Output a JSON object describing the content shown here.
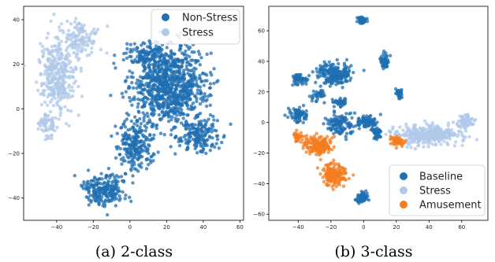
{
  "chart_data": [
    {
      "type": "scatter",
      "caption": "(a) 2-class",
      "xlim": [
        -58,
        62
      ],
      "ylim": [
        -50,
        46
      ],
      "xticks": [
        -40,
        -20,
        0,
        20,
        40,
        60
      ],
      "yticks": [
        -40,
        -20,
        0,
        20,
        40
      ],
      "xtick_labels": [
        "−40",
        "−20",
        "0",
        "20",
        "40",
        "60"
      ],
      "ytick_labels": [
        "−40",
        "−20",
        "0",
        "20",
        "40"
      ],
      "grid": false,
      "legend": "top-right",
      "series": [
        {
          "name": "Non-Stress",
          "color": "#1f6fb2",
          "clusters": [
            {
              "cx": 22,
              "cy": 10,
              "sx": 17,
              "sy": 15,
              "n": 900
            },
            {
              "cx": 3,
              "cy": -17,
              "sx": 8,
              "sy": 9,
              "n": 230
            },
            {
              "cx": -14,
              "cy": -36,
              "sx": 10,
              "sy": 6,
              "n": 220
            },
            {
              "cx": 10,
              "cy": 24,
              "sx": 10,
              "sy": 5,
              "n": 130
            },
            {
              "cx": 38,
              "cy": -12,
              "sx": 9,
              "sy": 6,
              "n": 160
            }
          ]
        },
        {
          "name": "Stress",
          "color": "#b0c8ea",
          "clusters": [
            {
              "cx": -40,
              "cy": 15,
              "sx": 8,
              "sy": 14,
              "n": 330
            },
            {
              "cx": -27,
              "cy": 32,
              "sx": 8,
              "sy": 6,
              "n": 120
            },
            {
              "cx": -45,
              "cy": -8,
              "sx": 4,
              "sy": 5,
              "n": 60
            }
          ]
        }
      ]
    },
    {
      "type": "scatter",
      "caption": "(b) 3-class",
      "xlim": [
        -58,
        76
      ],
      "ylim": [
        -64,
        76
      ],
      "xticks": [
        -40,
        -20,
        0,
        20,
        40,
        60
      ],
      "yticks": [
        -60,
        -40,
        -20,
        0,
        20,
        40,
        60
      ],
      "xtick_labels": [
        "−40",
        "−20",
        "0",
        "20",
        "40",
        "60"
      ],
      "ytick_labels": [
        "−60",
        "−40",
        "−20",
        "0",
        "20",
        "40",
        "60"
      ],
      "grid": false,
      "legend": "bottom-right",
      "series": [
        {
          "name": "Baseline",
          "color": "#1f6fb2",
          "clusters": [
            {
              "cx": -1,
              "cy": 67,
              "sx": 2,
              "sy": 2,
              "n": 70
            },
            {
              "cx": -18,
              "cy": 32,
              "sx": 9,
              "sy": 6,
              "n": 200
            },
            {
              "cx": 13,
              "cy": 40,
              "sx": 2,
              "sy": 4,
              "n": 60
            },
            {
              "cx": -39,
              "cy": 28,
              "sx": 4,
              "sy": 3,
              "n": 60
            },
            {
              "cx": -28,
              "cy": 18,
              "sx": 3,
              "sy": 3,
              "n": 40
            },
            {
              "cx": 22,
              "cy": 19,
              "sx": 2,
              "sy": 2,
              "n": 40
            },
            {
              "cx": -40,
              "cy": 5,
              "sx": 4,
              "sy": 4,
              "n": 80
            },
            {
              "cx": -14,
              "cy": 13,
              "sx": 3,
              "sy": 2,
              "n": 60
            },
            {
              "cx": -15,
              "cy": -1,
              "sx": 7,
              "sy": 6,
              "n": 120
            },
            {
              "cx": 2,
              "cy": 0,
              "sx": 5,
              "sy": 4,
              "n": 90
            },
            {
              "cx": 8,
              "cy": -7,
              "sx": 3,
              "sy": 3,
              "n": 40
            },
            {
              "cx": -1,
              "cy": -49,
              "sx": 3,
              "sy": 3,
              "n": 70
            }
          ]
        },
        {
          "name": "Stress",
          "color": "#b0c8ea",
          "clusters": [
            {
              "cx": 40,
              "cy": -8,
              "sx": 17,
              "sy": 5,
              "n": 330
            },
            {
              "cx": 63,
              "cy": 0,
              "sx": 4,
              "sy": 4,
              "n": 70
            }
          ]
        },
        {
          "name": "Amusement",
          "color": "#f47c20",
          "clusters": [
            {
              "cx": -28,
              "cy": -15,
              "sx": 7,
              "sy": 5,
              "n": 180
            },
            {
              "cx": -18,
              "cy": -34,
              "sx": 6,
              "sy": 6,
              "n": 160
            },
            {
              "cx": -40,
              "cy": -9,
              "sx": 3,
              "sy": 3,
              "n": 30
            },
            {
              "cx": 20,
              "cy": -12,
              "sx": 4,
              "sy": 3,
              "n": 40
            }
          ]
        }
      ]
    }
  ]
}
